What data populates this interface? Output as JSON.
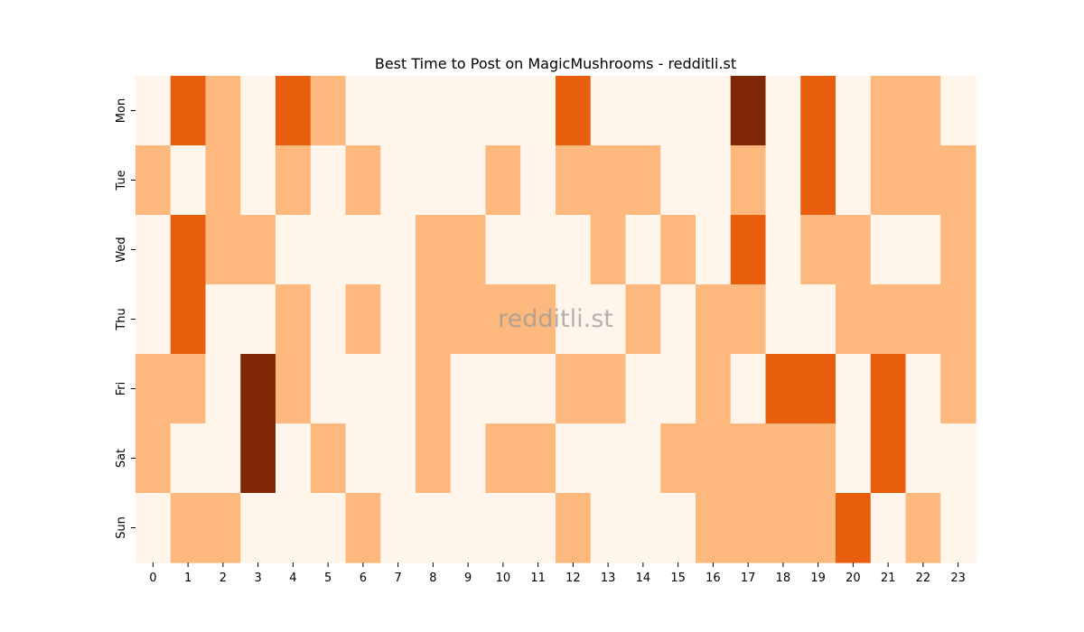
{
  "chart_data": {
    "type": "heatmap",
    "title": "Best Time to Post on MagicMushrooms - redditli.st",
    "watermark": "redditli.st",
    "xlabel": "",
    "ylabel": "",
    "x_categories": [
      "0",
      "1",
      "2",
      "3",
      "4",
      "5",
      "6",
      "7",
      "8",
      "9",
      "10",
      "11",
      "12",
      "13",
      "14",
      "15",
      "16",
      "17",
      "18",
      "19",
      "20",
      "21",
      "22",
      "23"
    ],
    "y_categories": [
      "Mon",
      "Tue",
      "Wed",
      "Thu",
      "Fri",
      "Sat",
      "Sun"
    ],
    "value_range": [
      0,
      3
    ],
    "colorscale": [
      "#fff5eb",
      "#fdb87d",
      "#e95e0d",
      "#7f2704"
    ],
    "grid": false,
    "legend": "none",
    "values": [
      [
        0,
        2,
        1,
        0,
        2,
        1,
        0,
        0,
        0,
        0,
        0,
        0,
        2,
        0,
        0,
        0,
        0,
        3,
        0,
        2,
        0,
        1,
        1,
        0
      ],
      [
        1,
        0,
        1,
        0,
        1,
        0,
        1,
        0,
        0,
        0,
        1,
        0,
        1,
        1,
        1,
        0,
        0,
        1,
        0,
        2,
        0,
        1,
        1,
        1
      ],
      [
        0,
        2,
        1,
        1,
        0,
        0,
        0,
        0,
        1,
        1,
        0,
        0,
        0,
        1,
        0,
        1,
        0,
        2,
        0,
        1,
        1,
        0,
        0,
        1
      ],
      [
        0,
        2,
        0,
        0,
        1,
        0,
        1,
        0,
        1,
        1,
        1,
        1,
        0,
        0,
        1,
        0,
        1,
        1,
        0,
        0,
        1,
        1,
        1,
        1
      ],
      [
        1,
        1,
        0,
        3,
        1,
        0,
        0,
        0,
        1,
        0,
        0,
        0,
        1,
        1,
        0,
        0,
        1,
        0,
        2,
        2,
        0,
        2,
        0,
        1
      ],
      [
        1,
        0,
        0,
        3,
        0,
        1,
        0,
        0,
        1,
        0,
        1,
        1,
        0,
        0,
        0,
        1,
        1,
        1,
        1,
        1,
        0,
        2,
        0,
        0
      ],
      [
        0,
        1,
        1,
        0,
        0,
        0,
        1,
        0,
        0,
        0,
        0,
        0,
        1,
        0,
        0,
        0,
        1,
        1,
        1,
        1,
        2,
        0,
        1,
        0
      ]
    ]
  }
}
